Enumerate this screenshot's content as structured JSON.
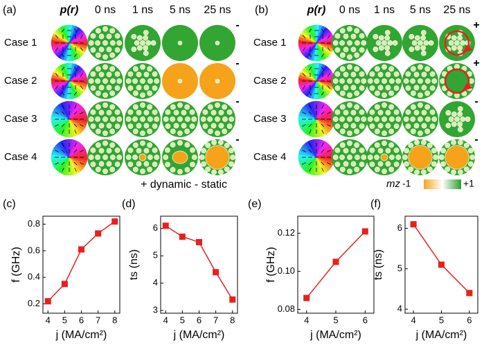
{
  "figure": {
    "grids": [
      {
        "label": "(a)",
        "columns": [
          "p(r)",
          "0 ns",
          "1 ns",
          "5 ns",
          "25 ns"
        ],
        "rows": [
          "Case 1",
          "Case 2",
          "Case 3",
          "Case 4"
        ],
        "signs": [
          "-",
          "-",
          "-",
          "-"
        ]
      },
      {
        "label": "(b)",
        "columns": [
          "p(r)",
          "0 ns",
          "1 ns",
          "5 ns",
          "25 ns"
        ],
        "rows": [
          "Case 1",
          "Case 2",
          "Case 3",
          "Case 4"
        ],
        "signs": [
          "+",
          "+",
          "-",
          "-"
        ]
      }
    ],
    "legend_note": "+ dynamic  - static",
    "colorbar": {
      "label": "mz",
      "min_label": "-1",
      "max_label": "+1"
    }
  },
  "chart_data": [
    {
      "type": "line",
      "label": "(c)",
      "x": [
        4,
        5,
        6,
        7,
        8
      ],
      "values": [
        0.22,
        0.35,
        0.61,
        0.73,
        0.82
      ],
      "color": "#e8201c",
      "xlim": [
        3.7,
        8.3
      ],
      "xticks": [
        4,
        5,
        6,
        7,
        8
      ],
      "ylim": [
        0.13,
        0.86
      ],
      "yticks": [
        0.2,
        0.4,
        0.6,
        0.8
      ],
      "xlabel": "j (MA/cm²)",
      "ylabel": "f (GHz)"
    },
    {
      "type": "line",
      "label": "(d)",
      "x": [
        4,
        5,
        6,
        7,
        8
      ],
      "values": [
        6.1,
        5.7,
        5.5,
        4.4,
        3.4
      ],
      "color": "#e8201c",
      "xlim": [
        3.7,
        8.3
      ],
      "xticks": [
        4,
        5,
        6,
        7,
        8
      ],
      "ylim": [
        2.9,
        6.45
      ],
      "yticks": [
        3,
        4,
        5,
        6
      ],
      "xlabel": "j (MA/cm²)",
      "ylabel": "ts (ns)"
    },
    {
      "type": "line",
      "label": "(e)",
      "x": [
        4,
        5,
        6
      ],
      "values": [
        0.086,
        0.105,
        0.121
      ],
      "color": "#e8201c",
      "xlim": [
        3.7,
        6.3
      ],
      "xticks": [
        4,
        5,
        6
      ],
      "ylim": [
        0.078,
        0.129
      ],
      "yticks": [
        0.08,
        {
          "value": 0.1,
          "label": "0.10"
        },
        0.12
      ],
      "xlabel": "j (MA/cm²)",
      "ylabel": "f (GHz)"
    },
    {
      "type": "line",
      "label": "(f)",
      "x": [
        4,
        5,
        6
      ],
      "values": [
        6.1,
        5.1,
        4.4
      ],
      "color": "#e8201c",
      "xlim": [
        3.7,
        6.3
      ],
      "xticks": [
        4,
        5,
        6
      ],
      "ylim": [
        3.9,
        6.3
      ],
      "yticks": [
        4,
        5,
        6
      ],
      "xlabel": "j (MA/cm²)",
      "ylabel": "ts (ns)"
    }
  ]
}
